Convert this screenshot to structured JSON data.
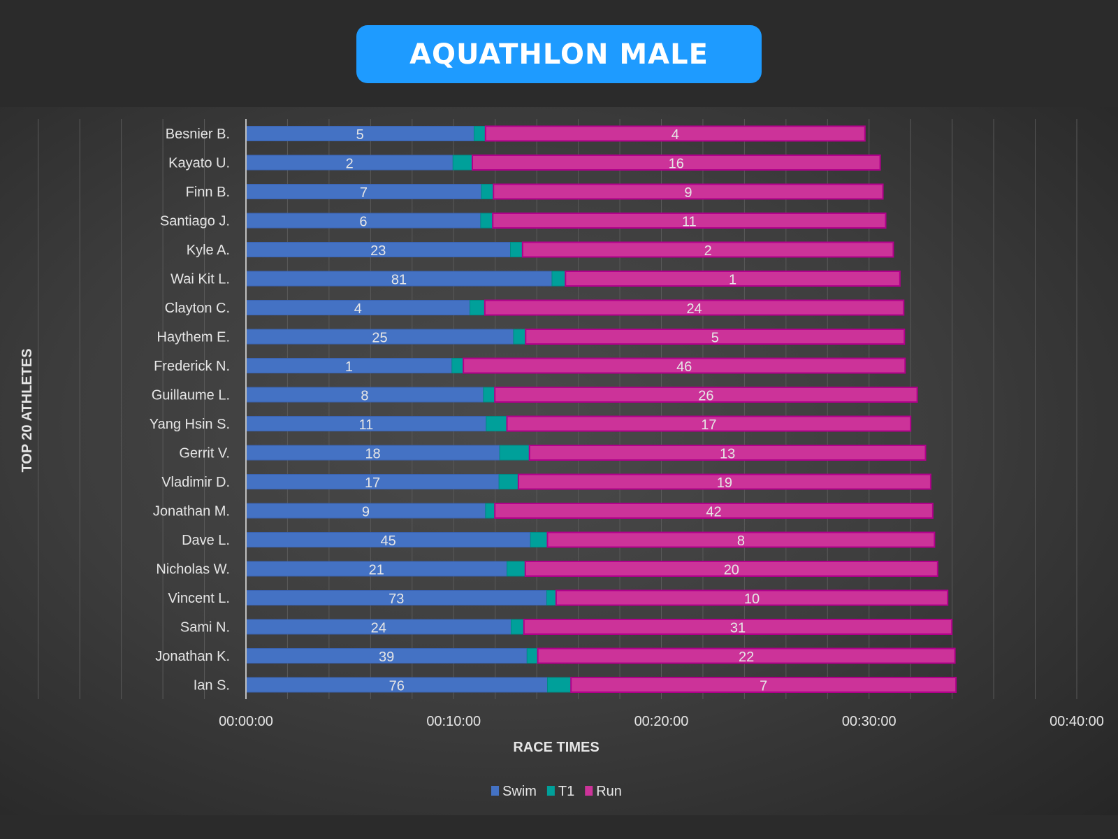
{
  "title": "AQUATHLON MALE",
  "chart_data": {
    "type": "bar",
    "orientation": "horizontal",
    "stacked": true,
    "title": "AQUATHLON MALE",
    "xlabel": "RACE TIMES",
    "ylabel": "TOP 20 ATHLETES",
    "xlim": [
      "00:00:00",
      "00:40:00"
    ],
    "x_ticks": [
      "00:00:00",
      "00:10:00",
      "00:20:00",
      "00:30:00",
      "00:40:00"
    ],
    "grid": true,
    "legend_position": "bottom",
    "categories": [
      "Besnier B.",
      "Kayato U.",
      "Finn B.",
      "Santiago J.",
      "Kyle A.",
      "Wai Kit L.",
      "Clayton C.",
      "Haythem E.",
      "Frederick  N.",
      "Guillaume L.",
      "Yang Hsin S.",
      "Gerrit V.",
      "Vladimir D.",
      "Jonathan M.",
      "Dave L.",
      "Nicholas W.",
      "Vincent L.",
      "Sami N.",
      "Jonathan K.",
      "Ian S."
    ],
    "series": [
      {
        "name": "Swim",
        "color": "#4472c4",
        "values": [
          "00:10:59",
          "00:09:58",
          "00:11:20",
          "00:11:18",
          "00:12:44",
          "00:14:44",
          "00:10:47",
          "00:12:53",
          "00:09:55",
          "00:11:26",
          "00:11:34",
          "00:12:13",
          "00:12:11",
          "00:11:32",
          "00:13:42",
          "00:12:34",
          "00:14:29",
          "00:12:46",
          "00:13:32",
          "00:14:31"
        ],
        "data_labels": [
          "5",
          "2",
          "7",
          "6",
          "23",
          "81",
          "4",
          "25",
          "1",
          "8",
          "11",
          "18",
          "17",
          "9",
          "45",
          "21",
          "73",
          "24",
          "39",
          "76"
        ]
      },
      {
        "name": "T1",
        "color": "#00a09a",
        "values": [
          "00:00:33",
          "00:00:56",
          "00:00:35",
          "00:00:35",
          "00:00:35",
          "00:00:39",
          "00:00:43",
          "00:00:35",
          "00:00:33",
          "00:00:33",
          "00:01:00",
          "00:01:26",
          "00:00:56",
          "00:00:27",
          "00:00:49",
          "00:00:53",
          "00:00:27",
          "00:00:37",
          "00:00:31",
          "00:01:08"
        ],
        "data_labels": []
      },
      {
        "name": "Run",
        "color": "#cc3399",
        "values": [
          "00:18:16",
          "00:19:38",
          "00:18:45",
          "00:18:55",
          "00:17:51",
          "00:16:06",
          "00:20:10",
          "00:18:14",
          "00:21:16",
          "00:20:20",
          "00:19:26",
          "00:19:04",
          "00:19:51",
          "00:21:05",
          "00:18:38",
          "00:19:51",
          "00:18:51",
          "00:20:36",
          "00:20:05",
          "00:18:32"
        ],
        "data_labels": [
          "4",
          "16",
          "9",
          "11",
          "2",
          "1",
          "24",
          "5",
          "46",
          "26",
          "17",
          "13",
          "19",
          "42",
          "8",
          "20",
          "10",
          "31",
          "22",
          "7"
        ]
      }
    ]
  }
}
